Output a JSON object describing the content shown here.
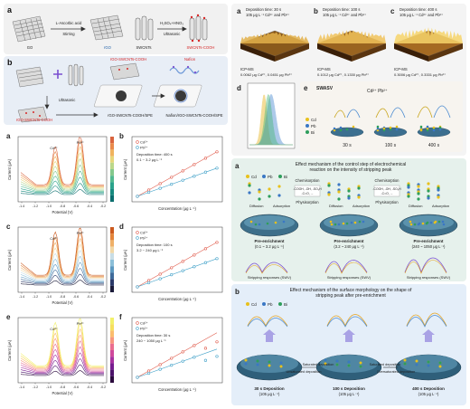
{
  "panel_a": {
    "label": "a",
    "reagent_top": "L-Ascorbic acid",
    "reagent_bottom": "Stirring",
    "acid_top": "H₂SO₄+HNO₃",
    "acid_bottom": "Ultrasonic",
    "mat1": "GO",
    "mat2": "rGO",
    "mat3": "SWCNTs",
    "mat4": "SWCNTs-COOH"
  },
  "panel_b": {
    "label": "b",
    "composite": "rGO-SWCNTs-COOH",
    "ultrasonic": "Ultrasonic",
    "nafion": "Nafion",
    "product1": "rGO-SWCNTs-COOH",
    "electrode1": "rGO-SWCNTs-COOH/SPE",
    "electrode2": "Nafion/rGO-SWCNTs-COOH/SPE"
  },
  "swv_plots": [
    {
      "label": "a",
      "ylabel": "Current (μA)",
      "xlabel": "Potential (V)",
      "peak1": "Cd²⁺",
      "peak2": "Pb²⁺"
    },
    {
      "label": "c",
      "ylabel": "Current (μA)",
      "xlabel": "Potential (V)",
      "peak1": "Cd²⁺",
      "peak2": "Pb²⁺"
    },
    {
      "label": "e",
      "ylabel": "Current (μA)",
      "xlabel": "Potential (V)",
      "peak1": "Cd²⁺",
      "peak2": "Pb²⁺"
    }
  ],
  "calib_plots": [
    {
      "label": "b",
      "legend1": "Cd²⁺",
      "legend2": "Pb²⁺",
      "note1": "Deposition time: 400 s",
      "note2": "0.1 ~ 3.2 μg L⁻¹",
      "ylabel": "Current (μA)",
      "xlabel": "Concentration (μg L⁻¹)"
    },
    {
      "label": "d",
      "legend1": "Cd²⁺",
      "legend2": "Pb²⁺",
      "note1": "Deposition time: 100 s",
      "note2": "3.2 ~ 240 μg L⁻¹",
      "ylabel": "Current (μA)",
      "xlabel": "Concentration (μg L⁻¹)"
    },
    {
      "label": "f",
      "legend1": "Cd²⁺",
      "legend2": "Pb²⁺",
      "note1": "Deposition time: 30 s",
      "note2": "240 ~ 1050 μg L⁻¹",
      "ylabel": "Current (μA)",
      "xlabel": "Concentration (μg L⁻¹)"
    }
  ],
  "afm": [
    {
      "label": "a",
      "line1": "Deposition time: 30 s",
      "line2": "105 μg L⁻¹ Cd²⁺ and Pb²⁺",
      "icp": "ICP-MS",
      "result": "0.0062 μg Cd²⁺, 0.0451 μg Pb²⁺"
    },
    {
      "label": "b",
      "line1": "Deposition time: 100 s",
      "line2": "105 μg L⁻¹ Cd²⁺ and Pb²⁺",
      "icp": "ICP-MS",
      "result": "0.1012 μg Cd²⁺, 0.1330 μg Pb²⁺"
    },
    {
      "label": "c",
      "line1": "Deposition time: 400 s",
      "line2": "105 μg L⁻¹ Cd²⁺ and Pb²⁺",
      "icp": "ICP-MS",
      "result": "0.3006 μg Cd²⁺, 0.3331 μg Pb²⁺"
    }
  ],
  "panel_d": {
    "label": "d"
  },
  "panel_e": {
    "label": "e",
    "title": "SWASV",
    "ions": "Cd²⁺   Pb²⁺",
    "legend": [
      "Cd",
      "Pb",
      "Bi"
    ],
    "times": [
      "30 s",
      "100 s",
      "400 s"
    ]
  },
  "mech_a": {
    "label": "a",
    "title1": "Effect mechanism of the control step of electrochemical",
    "title2": "reaction on the intensity of stripping peak",
    "legend": [
      "Cd",
      "Pb",
      "Bi"
    ],
    "chemi": "Chemisorption",
    "physi": "Physisorption",
    "diffusion": "Diffusion",
    "adsorption": "Adsorption",
    "groups1": "-COOH, -OH, -SO₃H",
    "groups2": "-C=O, ...",
    "pre1": "Pre-enrichment",
    "pre1b": "(0.1 ~ 3.2 μg L⁻¹)",
    "pre2": "Pre-enrichment",
    "pre2b": "(3.2 ~ 240 μg L⁻¹)",
    "pre3": "Pre-enrichment",
    "pre3b": "(240 ~ 1050 μg L⁻¹)",
    "resp": "Stripping responses (SWV)"
  },
  "mech_b": {
    "label": "b",
    "title1": "Effect mechanism of the surface morphology on the shape of",
    "title2": "stripping peak after pre-enrichment",
    "legend": [
      "Cd",
      "Pb",
      "Bi"
    ],
    "unsat": "Unsaturated deposition",
    "sat1": "Saturated deposition",
    "sat2": "Saturated deposition",
    "over": "Oversaturated deposition",
    "dep1": "30 s Deposition",
    "dep1b": "(105 μg L⁻¹)",
    "dep2": "100 s Deposition",
    "dep2b": "(105 μg L⁻¹)",
    "dep3": "400 s Deposition",
    "dep3b": "(105 μg L⁻¹)"
  },
  "colors": {
    "cd": "#e8c11c",
    "pb": "#3a77c4",
    "bi": "#2e9e5b",
    "red_series": "#e05a4a",
    "blue_series": "#3fa0c8"
  }
}
